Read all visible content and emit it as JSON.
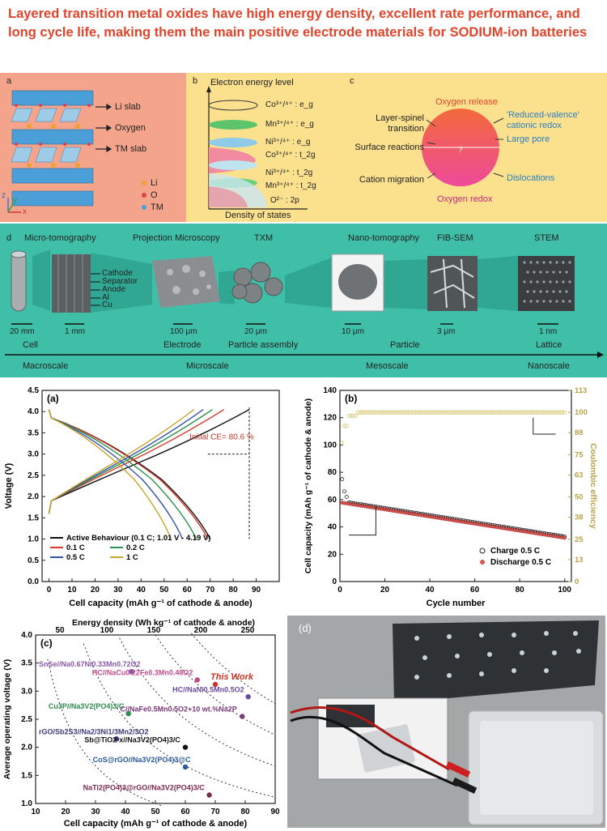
{
  "title": "Layered transition metal oxides have high energy density, excellent rate performance, and long cycle life, making them the main positive electrode materials for SODIUM-ion batteries",
  "panel_a": {
    "label": "a",
    "items": [
      "Li slab",
      "Oxygen",
      "TM slab"
    ],
    "legend": [
      "Li",
      "O",
      "TM"
    ],
    "axes": [
      "z",
      "y",
      "x"
    ]
  },
  "panel_b": {
    "label": "b",
    "ytitle": "Electron energy level",
    "xtitle": "Density of states",
    "levels": [
      "Co³⁺/⁴⁺ : e_g",
      "Mn³⁺/⁴⁺ : e_g",
      "Ni³⁺/⁴⁺ : e_g",
      "Co³⁺/⁴⁺ : t_2g",
      "Ni³⁺/⁴⁺ : t_2g",
      "Mn³⁺/⁴⁺ : t_2g",
      "O²⁻ : 2p"
    ]
  },
  "panel_c": {
    "label": "c",
    "top": "Oxygen release",
    "bottom": "Oxygen redox",
    "left": [
      "Layer-spinel transition",
      "Surface reactions",
      "Cation migration"
    ],
    "right": [
      "'Reduced-valence' cationic redox",
      "Large pore",
      "Dislocations"
    ]
  },
  "panel_d": {
    "label": "d",
    "techniques": [
      "Micro-tomography",
      "Projection Microscopy",
      "TXM",
      "Nano-tomography",
      "FIB-SEM",
      "STEM"
    ],
    "layers": [
      "Cathode",
      "Separator",
      "Anode",
      "Al",
      "Cu"
    ],
    "scales": [
      "20 mm",
      "1 mm",
      "100 μm",
      "20 μm",
      "10 μm",
      "3 μm",
      "1 nm"
    ],
    "objects": [
      "Cell",
      "Electrode",
      "Particle assembly",
      "Particle",
      "Lattice"
    ],
    "regimes": [
      "Macroscale",
      "Microscale",
      "Mesoscale",
      "Nanoscale"
    ]
  },
  "chart_data": [
    {
      "type": "line",
      "label": "(a)",
      "xlabel": "Cell capacity (mAh g⁻¹ of cathode & anode)",
      "ylabel": "Voltage (V)",
      "xlim": [
        -3,
        100
      ],
      "ylim": [
        0,
        4.5
      ],
      "xticks": [
        0,
        10,
        20,
        30,
        40,
        50,
        60,
        70,
        80,
        90
      ],
      "yticks": [
        "0.0",
        "0.5",
        "1.0",
        "1.5",
        "2.0",
        "2.5",
        "3.0",
        "3.5",
        "4.0",
        "4.5"
      ],
      "annotation": "Initial CE= 80.6 %",
      "legend": [
        "Active Behaviour (0.1 C; 1.01 V - 4.19 V)",
        "0.1 C",
        "0.2 C",
        "0.5 C",
        "1 C"
      ],
      "series": [
        {
          "name": "Active Behaviour (0.1 C; 1.01 V - 4.19 V)",
          "color": "#111111",
          "charge_max": 87,
          "discharge_max": 70
        },
        {
          "name": "0.1 C",
          "color": "#d63a2a",
          "charge_max": 76,
          "discharge_max": 69
        },
        {
          "name": "0.2 C",
          "color": "#2f8f4c",
          "charge_max": 71,
          "discharge_max": 64
        },
        {
          "name": "0.5 C",
          "color": "#3553a8",
          "charge_max": 67,
          "discharge_max": 58
        },
        {
          "name": "1 C",
          "color": "#c9a62c",
          "charge_max": 63,
          "discharge_max": 53
        }
      ]
    },
    {
      "type": "scatter",
      "label": "(b)",
      "xlabel": "Cycle number",
      "ylabel": "Cell capacity (mAh g⁻¹ of cathode & anode)",
      "y2label": "Coulombic efficiency",
      "xlim": [
        0,
        103
      ],
      "ylim": [
        0,
        140
      ],
      "y2lim": [
        0,
        113
      ],
      "xticks": [
        0,
        20,
        40,
        60,
        80,
        100
      ],
      "yticks": [
        0,
        20,
        40,
        60,
        80,
        100,
        120,
        140
      ],
      "y2ticks": [
        0,
        13,
        25,
        38,
        50,
        63,
        75,
        88,
        100,
        113
      ],
      "legend": [
        "Charge  0.5 C",
        "Discharge 0.5 C"
      ],
      "charge_start": [
        75,
        66,
        62
      ],
      "plateau": [
        58,
        56
      ],
      "end": 32,
      "ce_end": 100
    },
    {
      "type": "scatter",
      "label": "(c)",
      "xlabel": "Cell capacity (mAh g⁻¹ of cathode & anode)",
      "ylabel": "Average operating voltage (V)",
      "x2label": "Energy density (Wh kg⁻¹ of cathode & anode)",
      "xlim": [
        10,
        90
      ],
      "ylim": [
        1.0,
        4.0
      ],
      "xticks": [
        10,
        20,
        30,
        40,
        50,
        60,
        70,
        80,
        90
      ],
      "yticks": [
        "1.0",
        "1.5",
        "2.0",
        "2.5",
        "3.0",
        "3.5",
        "4.0"
      ],
      "x2ticks": [
        50,
        100,
        150,
        200,
        250
      ],
      "highlight": "This Work",
      "points": [
        {
          "label": "SnSe//Na0.67Ni0.33Mn0.72O2",
          "x": 42,
          "y": 3.35,
          "color": "#8a5aa8"
        },
        {
          "label": "HC//NaCu0.22Fe0.3Mn0.48O2",
          "x": 64,
          "y": 3.2,
          "color": "#c24a8a"
        },
        {
          "label": "This Work",
          "x": 70,
          "y": 3.12,
          "color": "#c8342a"
        },
        {
          "label": "HC//NaNi0.5Mn0.5O2",
          "x": 81,
          "y": 2.9,
          "color": "#6a4aa0"
        },
        {
          "label": "Cu3P//Na3V2(PO4)3/C",
          "x": 41,
          "y": 2.6,
          "color": "#2c8c4a"
        },
        {
          "label": "C//NaFe0.5Mn0.5O2+10 wt.%Na2P",
          "x": 79,
          "y": 2.55,
          "color": "#7a3a7a"
        },
        {
          "label": "rGO/Sb2S3//Na2/3Ni1/3Mn2/3O2",
          "x": 37,
          "y": 2.15,
          "color": "#3a3a7a"
        },
        {
          "label": "Sb@TiO2-x//Na3V2(PO4)3/C",
          "x": 60,
          "y": 2.0,
          "color": "#111111"
        },
        {
          "label": "CoS@rGO//Na3V2(PO4)3@C",
          "x": 60,
          "y": 1.65,
          "color": "#2a5a9a"
        },
        {
          "label": "NaTi2(PO4)3@rGO//Na3V2(PO4)3/C",
          "x": 68,
          "y": 1.15,
          "color": "#7a2a4a"
        }
      ]
    }
  ],
  "panel_d_photo": {
    "label": "(d)"
  }
}
